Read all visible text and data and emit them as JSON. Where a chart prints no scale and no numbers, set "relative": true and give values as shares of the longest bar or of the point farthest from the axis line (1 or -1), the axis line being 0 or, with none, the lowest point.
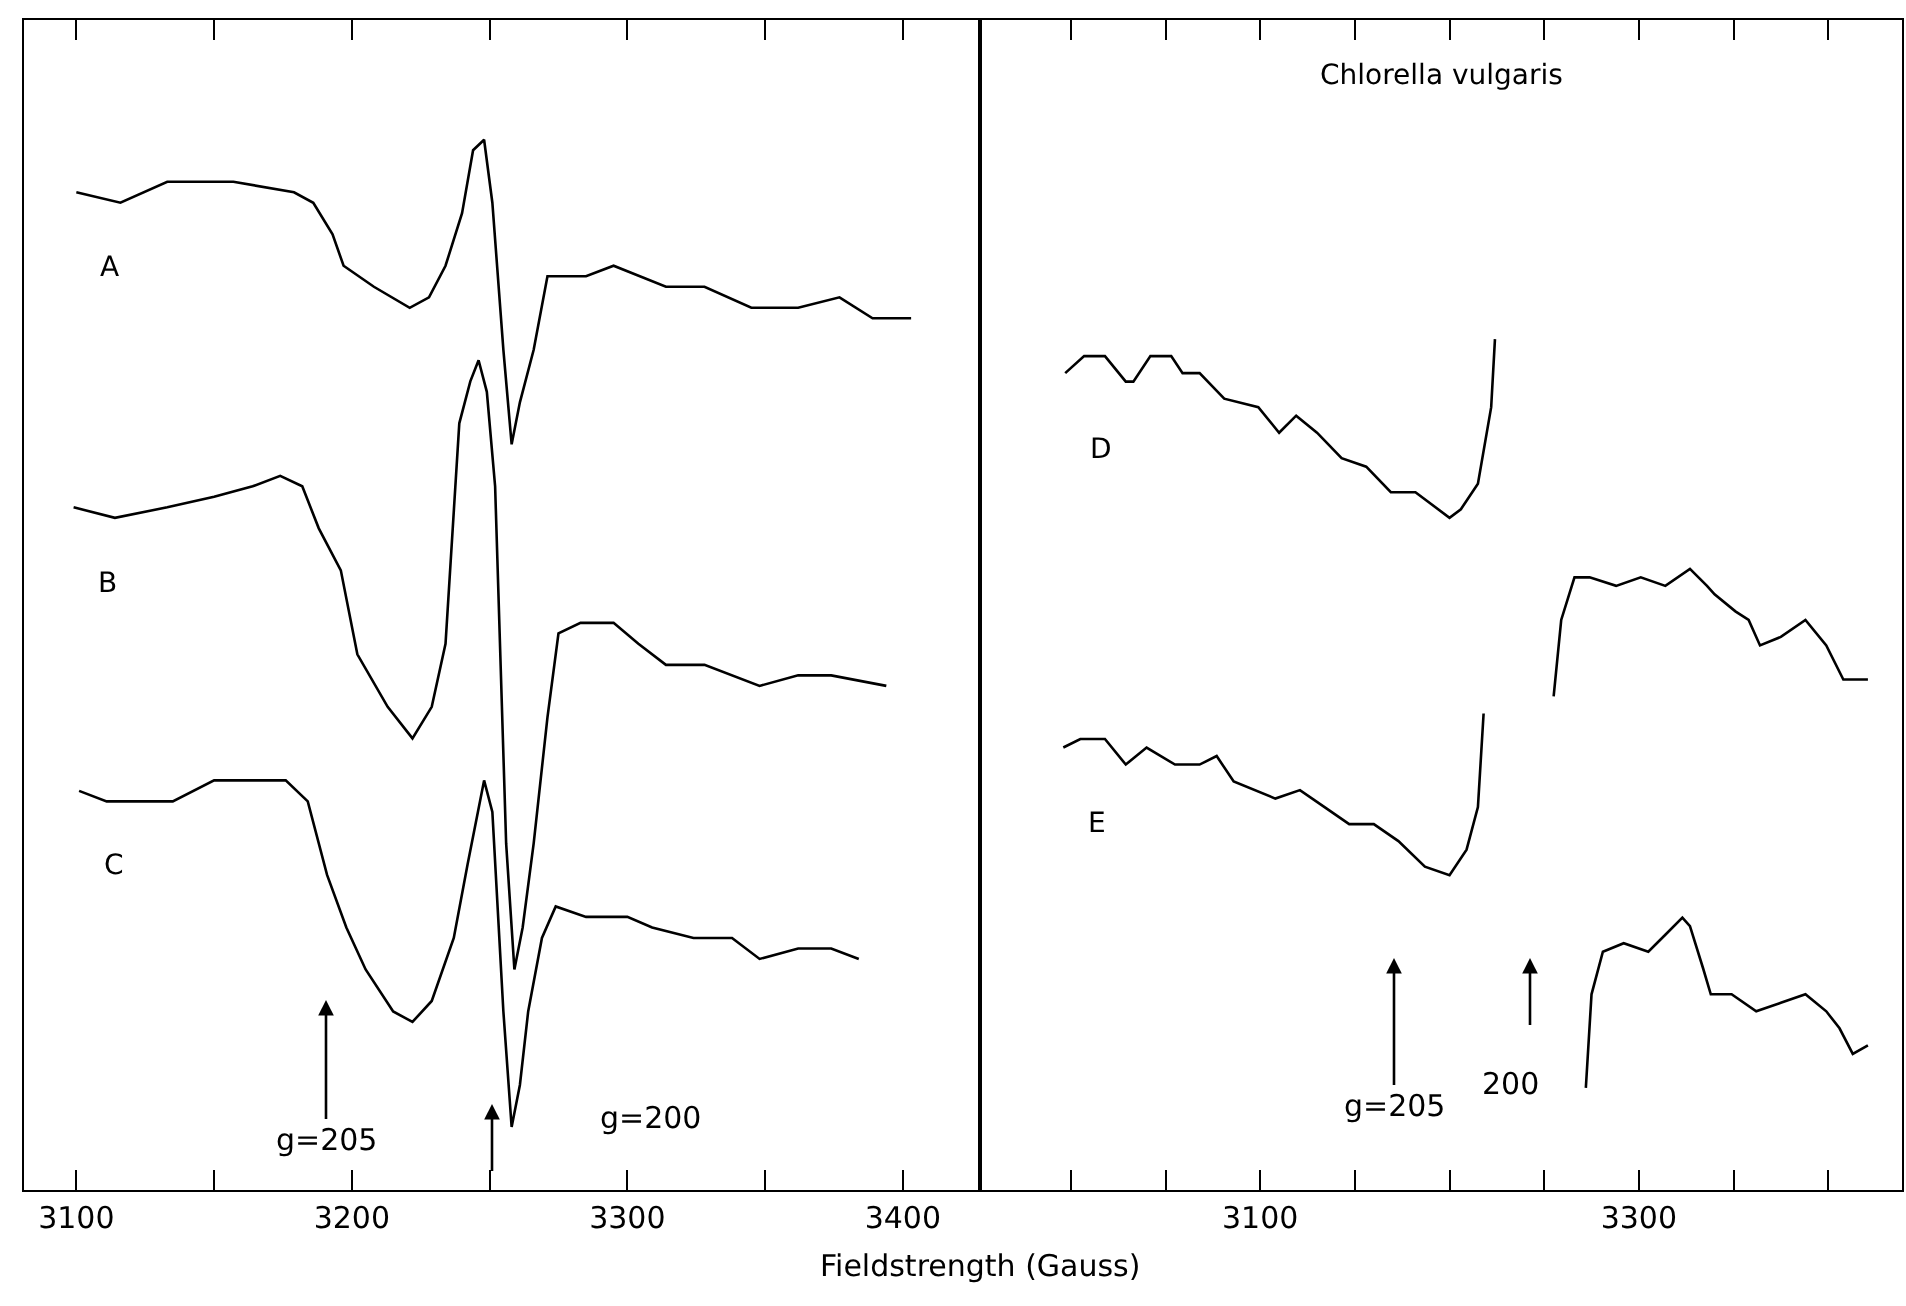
{
  "chart_data": [
    {
      "type": "line",
      "relative": true,
      "xlabel": "Fieldstrength (Gauss)",
      "xlim": [
        3081,
        3428
      ],
      "xticks": [
        3100,
        {
          "value": 3150,
          "label": null
        },
        3200,
        {
          "value": 3250,
          "label": null
        },
        3300,
        {
          "value": 3350,
          "label": null
        },
        3400
      ],
      "tick_labels": "x",
      "marker": "none",
      "line_style": "solid",
      "series": [
        {
          "name": "A",
          "color": "#000000",
          "x": [
            3100,
            3116,
            3133,
            3157,
            3179,
            3186,
            3193,
            3197,
            3208,
            3221,
            3228,
            3234,
            3240,
            3244,
            3248,
            3251,
            3255,
            3258,
            3261,
            3266,
            3271,
            3285,
            3295,
            3314,
            3328,
            3345,
            3362,
            3377,
            3389,
            3403
          ],
          "values": [
            0.95,
            0.94,
            0.96,
            0.96,
            0.95,
            0.94,
            0.91,
            0.88,
            0.86,
            0.84,
            0.85,
            0.88,
            0.93,
            0.99,
            1.0,
            0.94,
            0.8,
            0.71,
            0.75,
            0.8,
            0.87,
            0.87,
            0.88,
            0.86,
            0.86,
            0.84,
            0.84,
            0.85,
            0.83,
            0.83
          ]
        },
        {
          "name": "B",
          "color": "#000000",
          "x": [
            3099,
            3114,
            3133,
            3150,
            3164,
            3174,
            3182,
            3188,
            3196,
            3202,
            3213,
            3222,
            3229,
            3234,
            3239,
            3243,
            3246,
            3249,
            3252,
            3256,
            3259,
            3262,
            3266,
            3271,
            3275,
            3283,
            3295,
            3304,
            3314,
            3328,
            3348,
            3362,
            3374,
            3394
          ],
          "values": [
            0.65,
            0.64,
            0.65,
            0.66,
            0.67,
            0.68,
            0.67,
            0.63,
            0.59,
            0.51,
            0.46,
            0.43,
            0.46,
            0.52,
            0.73,
            0.77,
            0.79,
            0.76,
            0.67,
            0.33,
            0.21,
            0.25,
            0.33,
            0.45,
            0.53,
            0.54,
            0.54,
            0.52,
            0.5,
            0.5,
            0.48,
            0.49,
            0.49,
            0.48
          ]
        },
        {
          "name": "C",
          "color": "#000000",
          "x": [
            3101,
            3111,
            3121,
            3135,
            3150,
            3157,
            3176,
            3184,
            3191,
            3198,
            3205,
            3215,
            3222,
            3229,
            3237,
            3242,
            3248,
            3251,
            3255,
            3258,
            3261,
            3264,
            3269,
            3274,
            3285,
            3300,
            3309,
            3324,
            3338,
            3348,
            3362,
            3374,
            3384
          ],
          "values": [
            0.38,
            0.37,
            0.37,
            0.37,
            0.39,
            0.39,
            0.39,
            0.37,
            0.3,
            0.25,
            0.21,
            0.17,
            0.16,
            0.18,
            0.24,
            0.31,
            0.39,
            0.36,
            0.17,
            0.06,
            0.1,
            0.17,
            0.24,
            0.27,
            0.26,
            0.26,
            0.25,
            0.24,
            0.24,
            0.22,
            0.23,
            0.23,
            0.22
          ]
        }
      ],
      "annotations": [
        "g=205",
        "g=200"
      ]
    },
    {
      "type": "line",
      "relative": true,
      "title": "Chlorella vulgaris",
      "xlim": [
        2952,
        3439
      ],
      "xticks": [
        {
          "value": 3000,
          "label": null
        },
        {
          "value": 3050,
          "label": null
        },
        3100,
        {
          "value": 3150,
          "label": null
        },
        {
          "value": 3200,
          "label": null
        },
        {
          "value": 3250,
          "label": null
        },
        3300,
        {
          "value": 3350,
          "label": null
        },
        {
          "value": 3400,
          "label": null
        }
      ],
      "tick_labels": "x",
      "marker": "none",
      "line_style": "solid",
      "series": [
        {
          "name": "D",
          "color": "#000000",
          "x": [
            2997,
            3007,
            3018,
            3029,
            3033,
            3042,
            3053,
            3059,
            3068,
            3081,
            3099,
            3110,
            3119,
            3130,
            3143,
            3156,
            3169,
            3182,
            3200,
            3206,
            3215,
            3222,
            3224,
            3240,
            3255,
            3259,
            3266,
            3274,
            3288,
            3301,
            3314,
            3327,
            3336,
            3340,
            3351,
            3358,
            3364,
            3375,
            3388,
            3399,
            3408,
            3415,
            3421
          ],
          "values": [
            0.96,
            0.98,
            0.98,
            0.95,
            0.95,
            0.98,
            0.98,
            0.96,
            0.96,
            0.93,
            0.92,
            0.89,
            0.91,
            0.89,
            0.86,
            0.85,
            0.82,
            0.82,
            0.79,
            0.8,
            0.83,
            0.92,
            1.0,
            null,
            0.58,
            0.67,
            0.72,
            0.72,
            0.71,
            0.72,
            0.71,
            0.73,
            0.71,
            0.7,
            0.68,
            0.67,
            0.64,
            0.65,
            0.67,
            0.64,
            0.6,
            0.6,
            0.6
          ]
        },
        {
          "name": "E",
          "color": "#000000",
          "x": [
            2996,
            3005,
            3018,
            3029,
            3040,
            3055,
            3068,
            3077,
            3086,
            3108,
            3121,
            3134,
            3147,
            3160,
            3173,
            3187,
            3200,
            3209,
            3215,
            3218,
            3245,
            3272,
            3275,
            3281,
            3292,
            3305,
            3314,
            3323,
            3327,
            3334,
            3338,
            3349,
            3362,
            3375,
            3388,
            3399,
            3406,
            3413,
            3421
          ],
          "values": [
            0.52,
            0.53,
            0.53,
            0.5,
            0.52,
            0.5,
            0.5,
            0.51,
            0.48,
            0.46,
            0.47,
            0.45,
            0.43,
            0.43,
            0.41,
            0.38,
            0.37,
            0.4,
            0.45,
            0.56,
            null,
            0.12,
            0.23,
            0.28,
            0.29,
            0.28,
            0.3,
            0.32,
            0.31,
            0.26,
            0.23,
            0.23,
            0.21,
            0.22,
            0.23,
            0.21,
            0.19,
            0.16,
            0.17
          ]
        }
      ],
      "annotations": [
        "g=205",
        "200"
      ]
    }
  ]
}
